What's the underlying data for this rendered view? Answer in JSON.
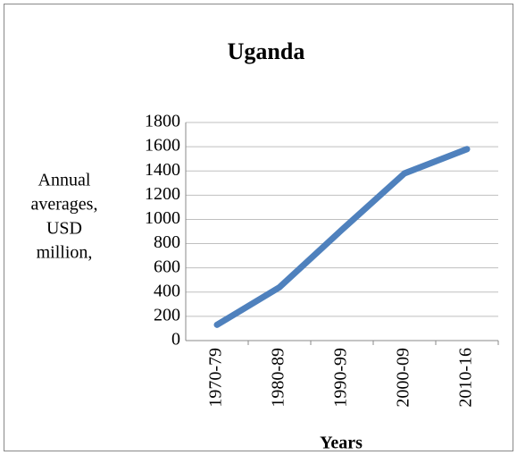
{
  "chart_data": {
    "type": "line",
    "title": "Uganda",
    "ylabel": [
      "Annual",
      "averages,",
      "USD",
      "million,"
    ],
    "xlabel": "Years",
    "categories": [
      "1970-79",
      "1980-89",
      "1990-99",
      "2000-09",
      "2010-16"
    ],
    "series": [
      {
        "name": "Uganda",
        "color": "#4f81bd",
        "values": [
          130,
          440,
          915,
          1380,
          1580
        ]
      }
    ],
    "ylim": [
      0,
      1800
    ],
    "yticks": [
      0,
      200,
      400,
      600,
      800,
      1000,
      1200,
      1400,
      1600,
      1800
    ],
    "grid": true
  }
}
